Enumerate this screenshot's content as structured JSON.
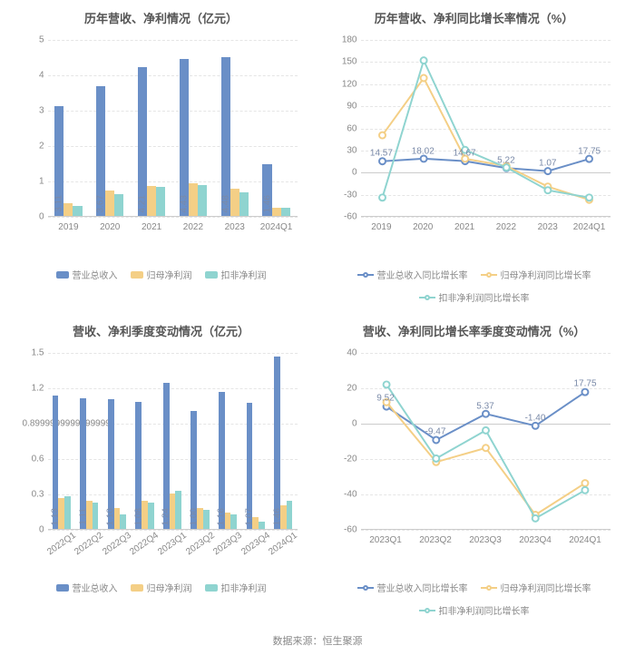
{
  "footer": "数据来源：恒生聚源",
  "colors": {
    "series1": "#6a8fc7",
    "series2": "#f4cf86",
    "series3": "#8fd4d0",
    "grid": "#e5e5e5",
    "axis": "#cccccc",
    "text": "#888888"
  },
  "panels": {
    "tl": {
      "title": "历年营收、净利情况（亿元）",
      "type": "bar",
      "categories": [
        "2019",
        "2020",
        "2021",
        "2022",
        "2023",
        "2024Q1"
      ],
      "ylim": [
        0,
        5
      ],
      "ytick_step": 1,
      "xtick_rot": false,
      "series": [
        {
          "name": "营业总收入",
          "colorKey": "series1",
          "values": [
            3.11,
            3.67,
            4.21,
            4.43,
            4.48,
            1.46
          ],
          "labels": [
            "3.11",
            "3.67",
            "4.21",
            "4.43",
            "4.48",
            "1.46"
          ]
        },
        {
          "name": "归母净利润",
          "colorKey": "series2",
          "values": [
            0.35,
            0.72,
            0.85,
            0.92,
            0.78,
            0.24
          ],
          "labels": []
        },
        {
          "name": "扣非净利润",
          "colorKey": "series3",
          "values": [
            0.28,
            0.62,
            0.82,
            0.88,
            0.66,
            0.22
          ],
          "labels": []
        }
      ],
      "legendType": "bar"
    },
    "tr": {
      "title": "历年营收、净利同比增长率情况（%）",
      "type": "line",
      "categories": [
        "2019",
        "2020",
        "2021",
        "2022",
        "2023",
        "2024Q1"
      ],
      "ylim": [
        -60,
        180
      ],
      "yticks": [
        -60,
        -30,
        0,
        30,
        60,
        90,
        120,
        150,
        180
      ],
      "xtick_rot": false,
      "series": [
        {
          "name": "营业总收入同比增长率",
          "colorKey": "series1",
          "values": [
            14.57,
            18.02,
            14.67,
            5.22,
            1.07,
            17.75
          ],
          "labels": [
            "14.57",
            "18.02",
            "14.67",
            "5.22",
            "1.07",
            "17.75"
          ]
        },
        {
          "name": "归母净利润同比增长率",
          "colorKey": "series2",
          "values": [
            50,
            128,
            18,
            8,
            -20,
            -38
          ],
          "labels": []
        },
        {
          "name": "扣非净利润同比增长率",
          "colorKey": "series3",
          "values": [
            -35,
            152,
            30,
            6,
            -25,
            -35
          ],
          "labels": []
        }
      ],
      "legendType": "line"
    },
    "bl": {
      "title": "营收、净利季度变动情况（亿元）",
      "type": "bar",
      "categories": [
        "2022Q1",
        "2022Q2",
        "2022Q3",
        "2022Q4",
        "2023Q1",
        "2023Q2",
        "2023Q3",
        "2023Q4",
        "2024Q1"
      ],
      "ylim": [
        0,
        1.5
      ],
      "ytick_step": 0.3,
      "xtick_rot": true,
      "series": [
        {
          "name": "营业总收入",
          "colorKey": "series1",
          "values": [
            1.13,
            1.11,
            1.1,
            1.08,
            1.24,
            1.0,
            1.16,
            1.07,
            1.46
          ],
          "labels": [
            "1.13",
            "1.11",
            "1.10",
            "1.08",
            "1.24",
            "1.00",
            "1.16",
            "1.07",
            "1.46"
          ]
        },
        {
          "name": "归母净利润",
          "colorKey": "series2",
          "values": [
            0.26,
            0.24,
            0.18,
            0.24,
            0.3,
            0.18,
            0.14,
            0.1,
            0.2
          ],
          "labels": []
        },
        {
          "name": "扣非净利润",
          "colorKey": "series3",
          "values": [
            0.28,
            0.22,
            0.12,
            0.22,
            0.32,
            0.16,
            0.12,
            0.06,
            0.24
          ],
          "labels": []
        }
      ],
      "legendType": "bar"
    },
    "br": {
      "title": "营收、净利同比增长率季度变动情况（%）",
      "type": "line",
      "categories": [
        "2023Q1",
        "2023Q2",
        "2023Q3",
        "2023Q4",
        "2024Q1"
      ],
      "ylim": [
        -60,
        40
      ],
      "yticks": [
        -60,
        -40,
        -20,
        0,
        20,
        40
      ],
      "xtick_rot": false,
      "series": [
        {
          "name": "营业总收入同比增长率",
          "colorKey": "series1",
          "values": [
            9.52,
            -9.47,
            5.37,
            -1.4,
            17.75
          ],
          "labels": [
            "9.52",
            "-9.47",
            "5.37",
            "-1.40",
            "17.75"
          ]
        },
        {
          "name": "归母净利润同比增长率",
          "colorKey": "series2",
          "values": [
            12,
            -22,
            -14,
            -52,
            -34
          ],
          "labels": []
        },
        {
          "name": "扣非净利润同比增长率",
          "colorKey": "series3",
          "values": [
            22,
            -20,
            -4,
            -54,
            -38
          ],
          "labels": []
        }
      ],
      "legendType": "line"
    }
  }
}
